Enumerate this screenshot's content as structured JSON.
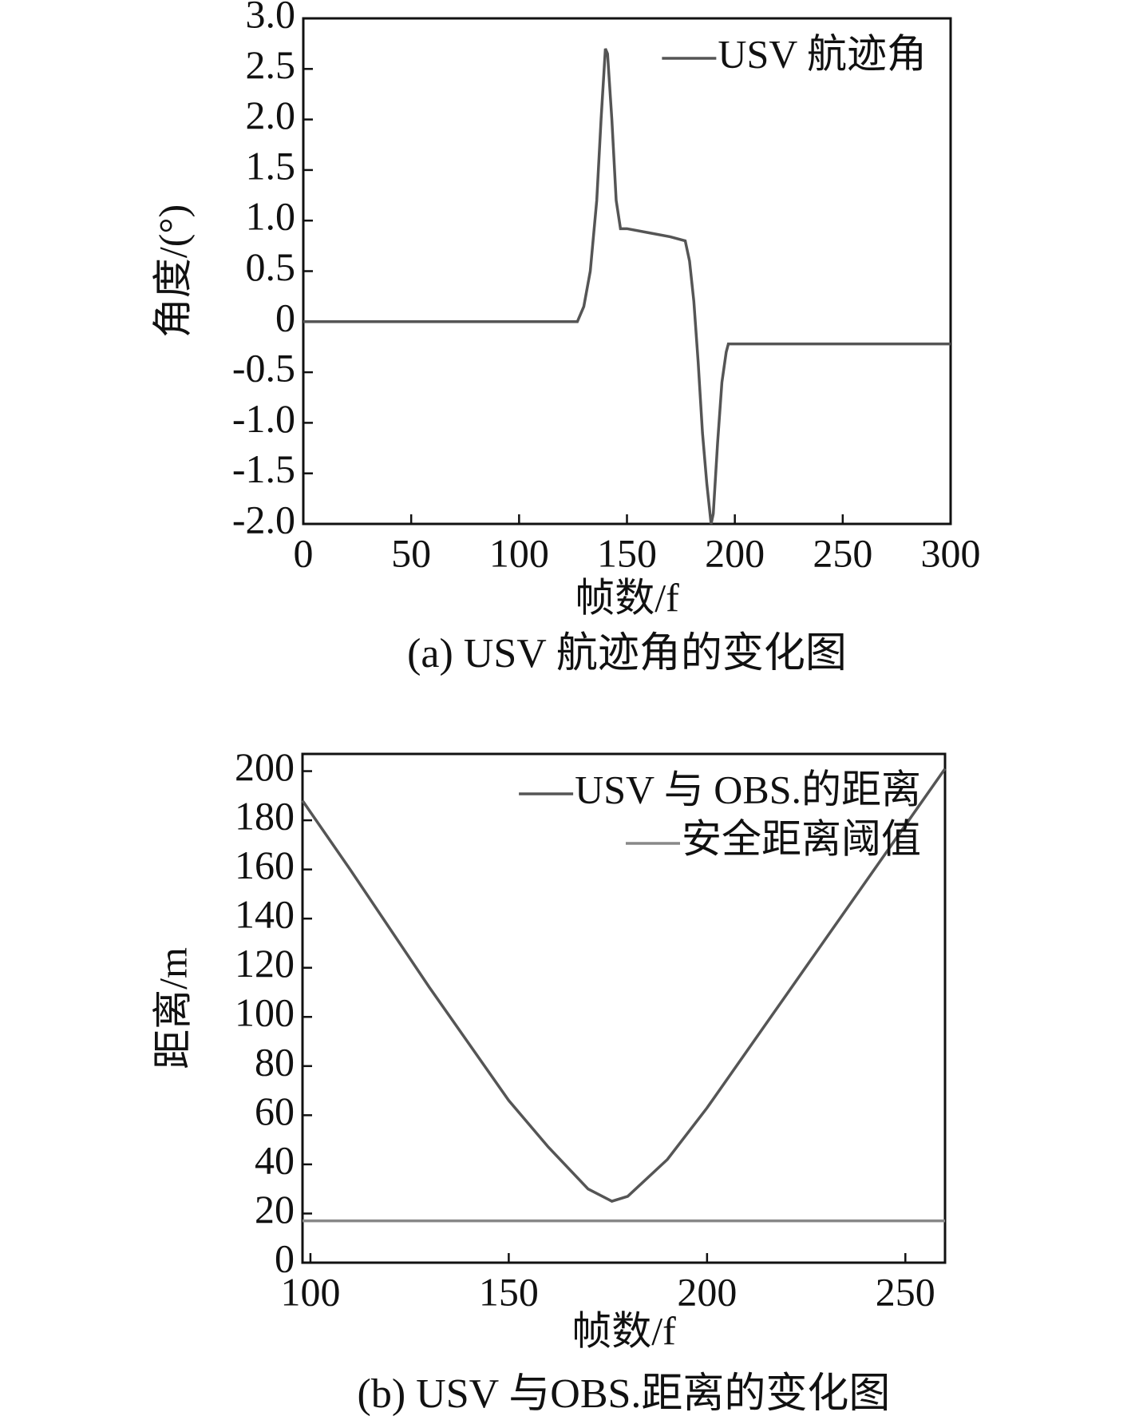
{
  "chart_data": [
    {
      "type": "line",
      "caption": "(a) USV 航迹角的变化图",
      "x_label": "帧数/f",
      "y_label": "角度/(°)",
      "xlim": [
        0,
        300
      ],
      "xticks": [
        0,
        50,
        100,
        150,
        200,
        250,
        300
      ],
      "ylim": [
        -2,
        3
      ],
      "yticks": [
        {
          "value": -2,
          "label": "-2.0"
        },
        {
          "value": -1.5,
          "label": "-1.5"
        },
        {
          "value": -1,
          "label": "-1.0"
        },
        {
          "value": -0.5,
          "label": "-0.5"
        },
        0,
        {
          "value": 0.5,
          "label": "0.5"
        },
        {
          "value": 1,
          "label": "1.0"
        },
        {
          "value": 1.5,
          "label": "1.5"
        },
        {
          "value": 2,
          "label": "2.0"
        },
        {
          "value": 2.5,
          "label": "2.5"
        },
        {
          "value": 3,
          "label": "3.0"
        }
      ],
      "legend": "upper right",
      "series": [
        {
          "name": "USV 航迹角",
          "color": "#555555",
          "x": [
            0,
            127,
            130,
            133,
            136,
            138,
            140,
            141,
            143,
            145,
            147,
            150,
            160,
            170,
            177,
            179,
            181,
            183,
            185,
            187,
            189,
            190,
            192,
            194,
            196,
            197,
            300
          ],
          "values": [
            0,
            0,
            0.15,
            0.5,
            1.2,
            2.0,
            2.7,
            2.65,
            2.0,
            1.2,
            0.92,
            0.92,
            0.88,
            0.84,
            0.8,
            0.6,
            0.2,
            -0.4,
            -1.1,
            -1.6,
            -2.0,
            -1.9,
            -1.2,
            -0.6,
            -0.3,
            -0.22,
            -0.22
          ]
        }
      ]
    },
    {
      "type": "line",
      "caption": "(b) USV 与OBS.距离的变化图",
      "x_label": "帧数/f",
      "y_label": "距离/m",
      "xlim": [
        98,
        260
      ],
      "xticks": [
        100,
        150,
        200,
        250
      ],
      "ylim": [
        0,
        207
      ],
      "yticks": [
        0,
        20,
        40,
        60,
        80,
        100,
        120,
        140,
        160,
        180,
        200
      ],
      "legend": "upper right",
      "series": [
        {
          "name": "USV 与 OBS.的距离",
          "color": "#555555",
          "x": [
            98,
            110,
            120,
            130,
            140,
            150,
            160,
            170,
            176,
            180,
            190,
            200,
            210,
            220,
            230,
            240,
            250,
            260
          ],
          "values": [
            188,
            160,
            136,
            112,
            89,
            66,
            47,
            30,
            25,
            27,
            42,
            63,
            86,
            109,
            132,
            155,
            178,
            201
          ]
        },
        {
          "name": "安全距离阈值",
          "color": "#888888",
          "x": [
            98,
            260
          ],
          "values": [
            17,
            17
          ]
        }
      ]
    }
  ]
}
